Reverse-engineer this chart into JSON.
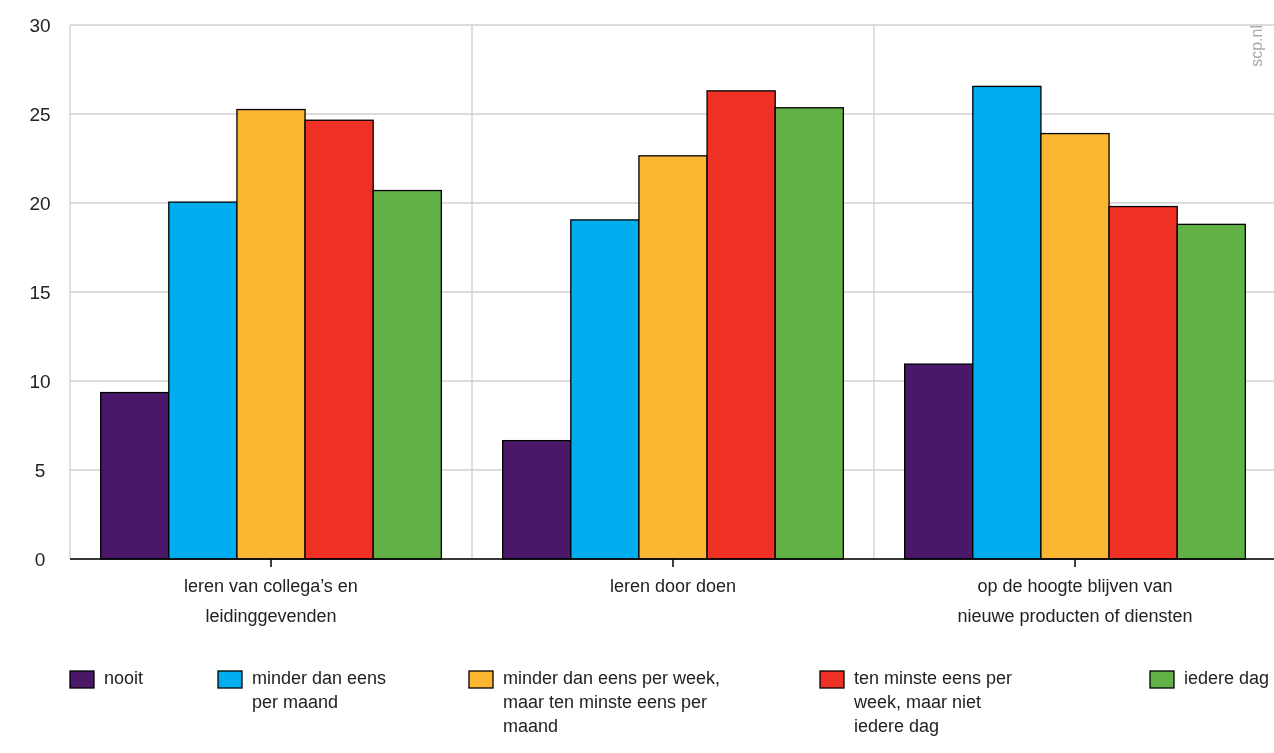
{
  "chart_data": {
    "type": "bar",
    "categories": [
      "leren van collega’s en leidinggevenden",
      "leren door doen",
      "op de hoogte blijven van nieuwe producten of diensten"
    ],
    "series": [
      {
        "name": "nooit",
        "color": "#4b1869",
        "values": [
          9.35,
          6.65,
          10.95
        ]
      },
      {
        "name": "minder dan eens per maand",
        "color": "#00aeef",
        "values": [
          20.05,
          19.05,
          26.55
        ]
      },
      {
        "name": "minder dan eens per week, maar ten minste eens per maand",
        "color": "#fbb731",
        "values": [
          25.25,
          22.65,
          23.9
        ]
      },
      {
        "name": "ten minste eens per week, maar niet iedere dag",
        "color": "#ee3124",
        "values": [
          24.65,
          26.3,
          19.8
        ]
      },
      {
        "name": "iedere dag",
        "color": "#62b146",
        "values": [
          20.7,
          25.35,
          18.8
        ]
      }
    ],
    "ylim": [
      0,
      30
    ],
    "yticks": [
      0,
      5,
      10,
      15,
      20,
      25,
      30
    ],
    "grid": true,
    "legend": "bottom",
    "annotations": [
      "scp.nl"
    ]
  }
}
